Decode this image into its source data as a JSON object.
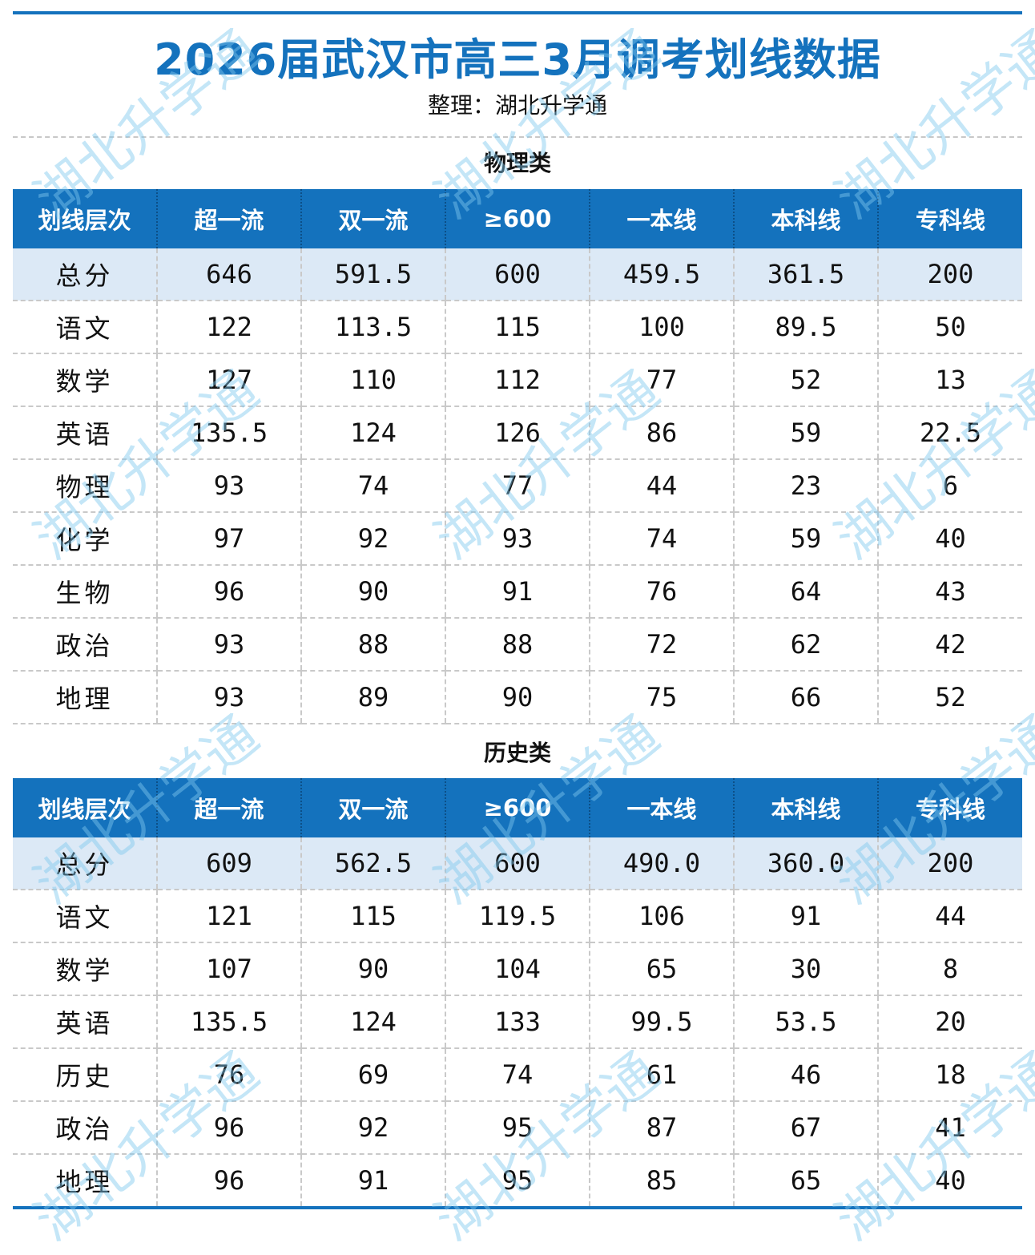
{
  "title": "2026届武汉市高三3月调考划线数据",
  "subtitle": "整理：湖北升学通",
  "watermark": "湖北升学通",
  "colors": {
    "accent": "#1472bd",
    "total_row_bg": "#dce9f6",
    "watermark": "#7ec8ef"
  },
  "columns": [
    "划线层次",
    "超一流",
    "双一流",
    "≥600",
    "一本线",
    "本科线",
    "专科线"
  ],
  "physics": {
    "label": "物理类",
    "rows": [
      [
        "总分",
        "646",
        "591.5",
        "600",
        "459.5",
        "361.5",
        "200"
      ],
      [
        "语文",
        "122",
        "113.5",
        "115",
        "100",
        "89.5",
        "50"
      ],
      [
        "数学",
        "127",
        "110",
        "112",
        "77",
        "52",
        "13"
      ],
      [
        "英语",
        "135.5",
        "124",
        "126",
        "86",
        "59",
        "22.5"
      ],
      [
        "物理",
        "93",
        "74",
        "77",
        "44",
        "23",
        "6"
      ],
      [
        "化学",
        "97",
        "92",
        "93",
        "74",
        "59",
        "40"
      ],
      [
        "生物",
        "96",
        "90",
        "91",
        "76",
        "64",
        "43"
      ],
      [
        "政治",
        "93",
        "88",
        "88",
        "72",
        "62",
        "42"
      ],
      [
        "地理",
        "93",
        "89",
        "90",
        "75",
        "66",
        "52"
      ]
    ]
  },
  "history": {
    "label": "历史类",
    "rows": [
      [
        "总分",
        "609",
        "562.5",
        "600",
        "490.0",
        "360.0",
        "200"
      ],
      [
        "语文",
        "121",
        "115",
        "119.5",
        "106",
        "91",
        "44"
      ],
      [
        "数学",
        "107",
        "90",
        "104",
        "65",
        "30",
        "8"
      ],
      [
        "英语",
        "135.5",
        "124",
        "133",
        "99.5",
        "53.5",
        "20"
      ],
      [
        "历史",
        "76",
        "69",
        "74",
        "61",
        "46",
        "18"
      ],
      [
        "政治",
        "96",
        "92",
        "95",
        "87",
        "67",
        "41"
      ],
      [
        "地理",
        "96",
        "91",
        "95",
        "85",
        "65",
        "40"
      ]
    ]
  }
}
